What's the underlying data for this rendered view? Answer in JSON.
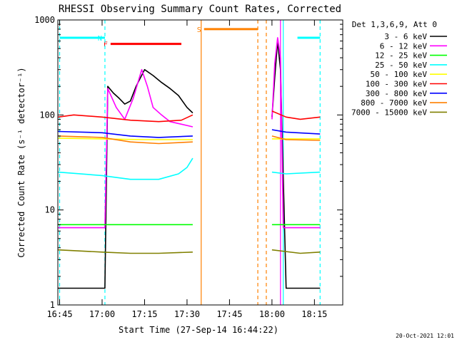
{
  "chart_data": {
    "type": "line",
    "title": "RHESSI Observing Summary Count Rates, Corrected",
    "xlabel": "Start Time (27-Sep-14 16:44:22)",
    "ylabel": "Corrected Count Rate (s⁻¹ detector⁻¹)",
    "y_scale": "log",
    "xlim": [
      "16:44:22",
      "18:25:00"
    ],
    "ylim": [
      1,
      1000
    ],
    "x_ticks": [
      "16:45",
      "17:00",
      "17:15",
      "17:30",
      "17:45",
      "18:00",
      "18:15"
    ],
    "y_ticks": [
      "1",
      "10",
      "100",
      "1000"
    ],
    "grid": false,
    "legend_position": "right",
    "legend_title": "Det 1,3,6,9, Att 0",
    "series": [
      {
        "name": "3 - 6 keV",
        "color": "#000000",
        "points": [
          [
            "16:44:30",
            1.5
          ],
          [
            "16:55",
            1.5
          ],
          [
            "17:01",
            1.5
          ],
          [
            "17:02",
            200
          ],
          [
            "17:04",
            170
          ],
          [
            "17:06",
            150
          ],
          [
            "17:08",
            130
          ],
          [
            "17:10",
            140
          ],
          [
            "17:12",
            200
          ],
          [
            "17:15",
            300
          ],
          [
            "17:18",
            260
          ],
          [
            "17:21",
            220
          ],
          [
            "17:24",
            190
          ],
          [
            "17:27",
            160
          ],
          [
            "17:30",
            120
          ],
          [
            "17:32",
            105
          ],
          [
            null,
            null
          ],
          [
            "18:00",
            95
          ],
          [
            "18:01",
            250
          ],
          [
            "18:02",
            600
          ],
          [
            "18:03",
            300
          ],
          [
            "18:05",
            1.5
          ],
          [
            "18:11",
            1.5
          ],
          [
            "18:17",
            1.5
          ]
        ]
      },
      {
        "name": "6 - 12 keV",
        "color": "#ff00ff",
        "points": [
          [
            "16:44:30",
            6.5
          ],
          [
            "17:01",
            6.5
          ],
          [
            "17:02",
            190
          ],
          [
            "17:05",
            120
          ],
          [
            "17:08",
            90
          ],
          [
            "17:11",
            150
          ],
          [
            "17:14",
            300
          ],
          [
            "17:16",
            200
          ],
          [
            "17:18",
            120
          ],
          [
            "17:21",
            100
          ],
          [
            "17:24",
            85
          ],
          [
            "17:28",
            80
          ],
          [
            "17:32",
            75
          ],
          [
            null,
            null
          ],
          [
            "18:00",
            90
          ],
          [
            "18:01",
            350
          ],
          [
            "18:02",
            650
          ],
          [
            "18:03",
            400
          ],
          [
            "18:04",
            6.5
          ],
          [
            "18:10",
            6.5
          ],
          [
            "18:17",
            6.5
          ]
        ]
      },
      {
        "name": "12 - 25 keV",
        "color": "#00ff00",
        "points": [
          [
            "16:44:30",
            7
          ],
          [
            "17:05",
            7
          ],
          [
            "17:15",
            7
          ],
          [
            "17:25",
            7
          ],
          [
            "17:32",
            7
          ],
          [
            null,
            null
          ],
          [
            "18:00",
            7
          ],
          [
            "18:10",
            7
          ],
          [
            "18:17",
            7
          ]
        ]
      },
      {
        "name": "25 - 50 keV",
        "color": "#00ffff",
        "points": [
          [
            "16:44:30",
            25
          ],
          [
            "17:00",
            23
          ],
          [
            "17:10",
            21
          ],
          [
            "17:20",
            21
          ],
          [
            "17:27",
            24
          ],
          [
            "17:30",
            28
          ],
          [
            "17:32",
            35
          ],
          [
            null,
            null
          ],
          [
            "18:00",
            25
          ],
          [
            "18:05",
            24
          ],
          [
            "18:17",
            25
          ]
        ]
      },
      {
        "name": "50 - 100 keV",
        "color": "#ffff00",
        "points": [
          [
            "16:44:30",
            57
          ],
          [
            "17:00",
            56
          ],
          [
            "17:15",
            55
          ],
          [
            "17:32",
            55
          ],
          [
            null,
            null
          ],
          [
            "18:00",
            56
          ],
          [
            "18:17",
            56
          ]
        ]
      },
      {
        "name": "100 - 300 keV",
        "color": "#ff0000",
        "points": [
          [
            "16:44:30",
            95
          ],
          [
            "16:50",
            100
          ],
          [
            "17:00",
            95
          ],
          [
            "17:10",
            88
          ],
          [
            "17:20",
            85
          ],
          [
            "17:28",
            88
          ],
          [
            "17:32",
            100
          ],
          [
            null,
            null
          ],
          [
            "18:00",
            110
          ],
          [
            "18:05",
            95
          ],
          [
            "18:10",
            90
          ],
          [
            "18:17",
            95
          ]
        ]
      },
      {
        "name": "300 - 800 keV",
        "color": "#0000ff",
        "points": [
          [
            "16:44:30",
            67
          ],
          [
            "17:00",
            65
          ],
          [
            "17:10",
            60
          ],
          [
            "17:20",
            58
          ],
          [
            "17:32",
            60
          ],
          [
            null,
            null
          ],
          [
            "18:00",
            70
          ],
          [
            "18:05",
            66
          ],
          [
            "18:17",
            63
          ]
        ]
      },
      {
        "name": "800 - 7000 keV",
        "color": "#ff8000",
        "points": [
          [
            "16:44:30",
            60
          ],
          [
            "17:00",
            58
          ],
          [
            "17:10",
            52
          ],
          [
            "17:20",
            50
          ],
          [
            "17:32",
            52
          ],
          [
            null,
            null
          ],
          [
            "18:00",
            60
          ],
          [
            "18:05",
            55
          ],
          [
            "18:17",
            54
          ]
        ]
      },
      {
        "name": "7000 - 15000 keV",
        "color": "#808000",
        "points": [
          [
            "16:44:30",
            3.8
          ],
          [
            "17:00",
            3.6
          ],
          [
            "17:10",
            3.5
          ],
          [
            "17:20",
            3.5
          ],
          [
            "17:32",
            3.6
          ],
          [
            null,
            null
          ],
          [
            "18:00",
            3.8
          ],
          [
            "18:10",
            3.5
          ],
          [
            "18:17",
            3.6
          ]
        ]
      }
    ],
    "flag_bars": [
      {
        "label": "",
        "color": "#00ffff",
        "start": "16:45",
        "end": "17:01",
        "y": 650
      },
      {
        "label": "N",
        "color": "#00ffff",
        "start": "17:01",
        "end": "17:01",
        "y": 650
      },
      {
        "label": "F",
        "color": "#ff0000",
        "start": "17:03",
        "end": "17:28",
        "y": 560
      },
      {
        "label": "S",
        "color": "#ff8000",
        "start": "17:36",
        "end": "17:55",
        "y": 800
      },
      {
        "label": "",
        "color": "#00ffff",
        "start": "18:09",
        "end": "18:17",
        "y": 650
      }
    ],
    "vlines": [
      {
        "time": "16:45",
        "color": "#00ffff",
        "style": "dashed"
      },
      {
        "time": "17:01",
        "color": "#00ffff",
        "style": "dashed"
      },
      {
        "time": "17:35",
        "color": "#ff8000",
        "style": "solid"
      },
      {
        "time": "17:55",
        "color": "#ff8000",
        "style": "dashed"
      },
      {
        "time": "17:58",
        "color": "#ff8000",
        "style": "dashed"
      },
      {
        "time": "18:03",
        "color": "#ff00ff",
        "style": "solid"
      },
      {
        "time": "18:04",
        "color": "#00ffff",
        "style": "solid"
      },
      {
        "time": "18:17",
        "color": "#00ffff",
        "style": "dashed"
      }
    ]
  },
  "footer": {
    "date_stamp": "20-Oct-2021 12:01"
  }
}
